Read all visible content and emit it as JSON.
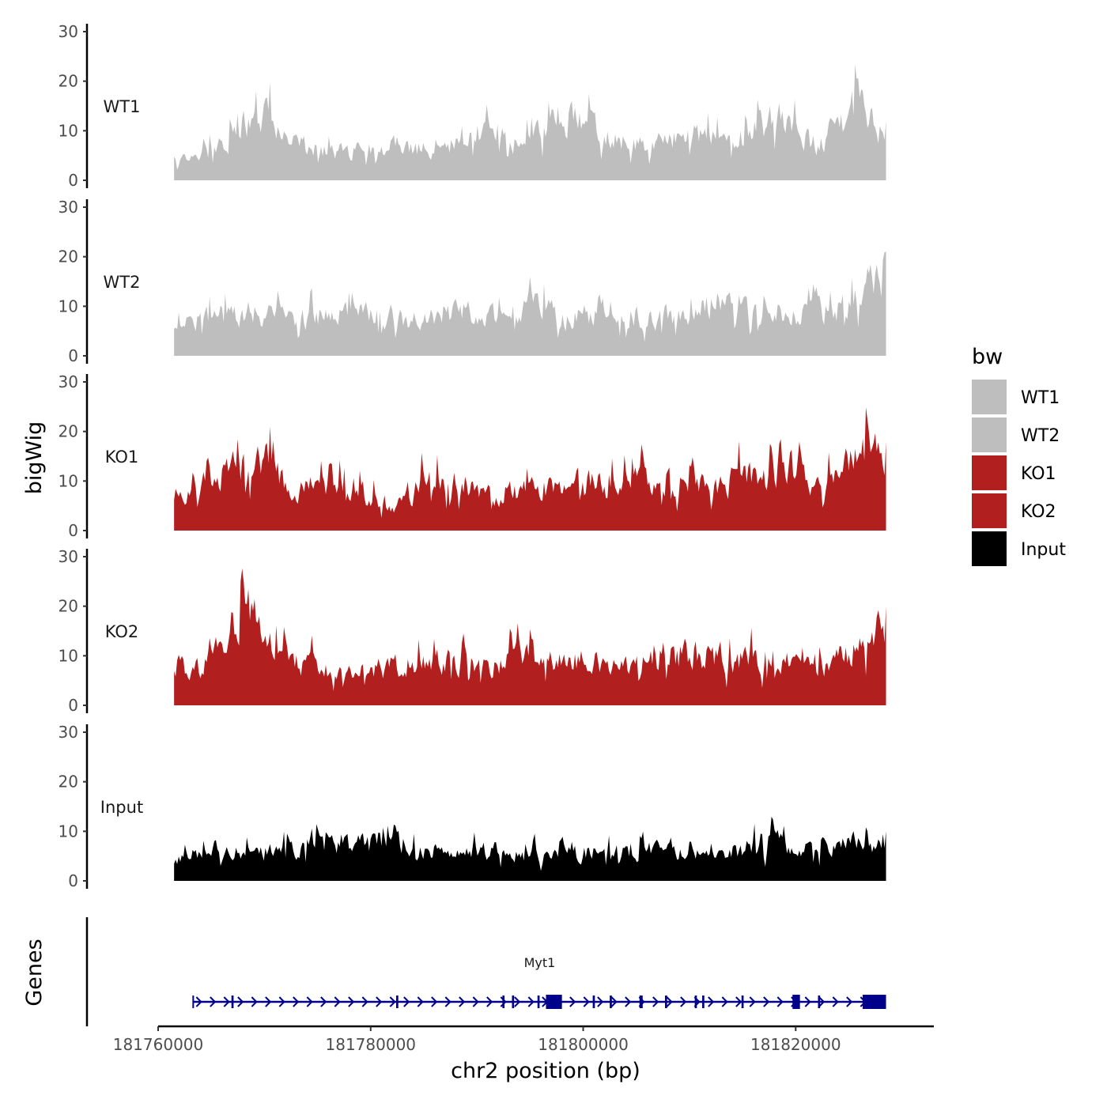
{
  "chart_data": {
    "type": "area",
    "chromosome": "chr2",
    "xlabel": "chr2 position (bp)",
    "ylabel": "bigWig",
    "genes_label": "Genes",
    "xlim": [
      181760000,
      181833000
    ],
    "data_range": [
      181761500,
      181828500
    ],
    "x_ticks": [
      181760000,
      181780000,
      181800000,
      181820000
    ],
    "x_tick_labels": [
      "181760000",
      "181780000",
      "181800000",
      "181820000"
    ],
    "ylim": [
      0,
      30
    ],
    "y_ticks": [
      0,
      10,
      20,
      30
    ],
    "y_tick_labels": [
      "0",
      "10",
      "20",
      "30"
    ],
    "legend": {
      "title": "bw",
      "entries": [
        {
          "label": "WT1",
          "color": "#bebebe"
        },
        {
          "label": "WT2",
          "color": "#bebebe"
        },
        {
          "label": "KO1",
          "color": "#b21f1f"
        },
        {
          "label": "KO2",
          "color": "#b21f1f"
        },
        {
          "label": "Input",
          "color": "#000000"
        }
      ]
    },
    "series": [
      {
        "name": "WT1",
        "color": "#bebebe",
        "anchors": [
          {
            "x": 181761500,
            "y": 5
          },
          {
            "x": 181763500,
            "y": 6
          },
          {
            "x": 181765500,
            "y": 8
          },
          {
            "x": 181768500,
            "y": 14
          },
          {
            "x": 181770000,
            "y": 16
          },
          {
            "x": 181772500,
            "y": 9
          },
          {
            "x": 181775000,
            "y": 8
          },
          {
            "x": 181778000,
            "y": 7
          },
          {
            "x": 181782000,
            "y": 9
          },
          {
            "x": 181786000,
            "y": 8
          },
          {
            "x": 181789500,
            "y": 10
          },
          {
            "x": 181791000,
            "y": 15
          },
          {
            "x": 181794000,
            "y": 8
          },
          {
            "x": 181797500,
            "y": 16
          },
          {
            "x": 181802000,
            "y": 12
          },
          {
            "x": 181806000,
            "y": 8
          },
          {
            "x": 181810000,
            "y": 12
          },
          {
            "x": 181813500,
            "y": 9
          },
          {
            "x": 181818500,
            "y": 15
          },
          {
            "x": 181822000,
            "y": 8
          },
          {
            "x": 181825500,
            "y": 19
          },
          {
            "x": 181828500,
            "y": 12
          }
        ],
        "base": 7,
        "amp": 5
      },
      {
        "name": "WT2",
        "color": "#bebebe",
        "anchors": [
          {
            "x": 181761500,
            "y": 6
          },
          {
            "x": 181764000,
            "y": 10
          },
          {
            "x": 181768000,
            "y": 11
          },
          {
            "x": 181772000,
            "y": 9
          },
          {
            "x": 181776000,
            "y": 10
          },
          {
            "x": 181780000,
            "y": 11
          },
          {
            "x": 181784000,
            "y": 9
          },
          {
            "x": 181788000,
            "y": 11
          },
          {
            "x": 181792000,
            "y": 10
          },
          {
            "x": 181795000,
            "y": 14
          },
          {
            "x": 181798000,
            "y": 9
          },
          {
            "x": 181802000,
            "y": 12
          },
          {
            "x": 181806000,
            "y": 9
          },
          {
            "x": 181810000,
            "y": 11
          },
          {
            "x": 181813500,
            "y": 15
          },
          {
            "x": 181817000,
            "y": 9
          },
          {
            "x": 181820000,
            "y": 10
          },
          {
            "x": 181824000,
            "y": 12
          },
          {
            "x": 181826500,
            "y": 17
          },
          {
            "x": 181828500,
            "y": 21
          }
        ],
        "base": 7,
        "amp": 5
      },
      {
        "name": "KO1",
        "color": "#b21f1f",
        "anchors": [
          {
            "x": 181761500,
            "y": 6
          },
          {
            "x": 181764000,
            "y": 15
          },
          {
            "x": 181767000,
            "y": 15
          },
          {
            "x": 181770000,
            "y": 17
          },
          {
            "x": 181773000,
            "y": 10
          },
          {
            "x": 181776000,
            "y": 12
          },
          {
            "x": 181779000,
            "y": 10
          },
          {
            "x": 181782000,
            "y": 5
          },
          {
            "x": 181785000,
            "y": 12
          },
          {
            "x": 181788000,
            "y": 13
          },
          {
            "x": 181791000,
            "y": 9
          },
          {
            "x": 181795000,
            "y": 10
          },
          {
            "x": 181799000,
            "y": 12
          },
          {
            "x": 181803000,
            "y": 11
          },
          {
            "x": 181807000,
            "y": 14
          },
          {
            "x": 181811000,
            "y": 11
          },
          {
            "x": 181815000,
            "y": 13
          },
          {
            "x": 181819000,
            "y": 15
          },
          {
            "x": 181823000,
            "y": 12
          },
          {
            "x": 181826000,
            "y": 20
          },
          {
            "x": 181828500,
            "y": 18
          }
        ],
        "base": 8,
        "amp": 6
      },
      {
        "name": "KO2",
        "color": "#b21f1f",
        "anchors": [
          {
            "x": 181761500,
            "y": 8
          },
          {
            "x": 181764000,
            "y": 9
          },
          {
            "x": 181766000,
            "y": 15
          },
          {
            "x": 181767500,
            "y": 24
          },
          {
            "x": 181769000,
            "y": 22
          },
          {
            "x": 181771000,
            "y": 14
          },
          {
            "x": 181774000,
            "y": 10
          },
          {
            "x": 181778000,
            "y": 8
          },
          {
            "x": 181782000,
            "y": 10
          },
          {
            "x": 181786000,
            "y": 12
          },
          {
            "x": 181790000,
            "y": 9
          },
          {
            "x": 181794000,
            "y": 12
          },
          {
            "x": 181798000,
            "y": 11
          },
          {
            "x": 181802000,
            "y": 10
          },
          {
            "x": 181806000,
            "y": 11
          },
          {
            "x": 181810000,
            "y": 13
          },
          {
            "x": 181814000,
            "y": 11
          },
          {
            "x": 181818000,
            "y": 12
          },
          {
            "x": 181822000,
            "y": 9
          },
          {
            "x": 181826000,
            "y": 14
          },
          {
            "x": 181828500,
            "y": 20
          }
        ],
        "base": 6,
        "amp": 6
      },
      {
        "name": "Input",
        "color": "#000000",
        "anchors": [
          {
            "x": 181761500,
            "y": 5
          },
          {
            "x": 181765000,
            "y": 8
          },
          {
            "x": 181769000,
            "y": 7
          },
          {
            "x": 181773000,
            "y": 8
          },
          {
            "x": 181777000,
            "y": 10
          },
          {
            "x": 181780000,
            "y": 9
          },
          {
            "x": 181781500,
            "y": 13
          },
          {
            "x": 181784000,
            "y": 7
          },
          {
            "x": 181788000,
            "y": 8
          },
          {
            "x": 181792000,
            "y": 7
          },
          {
            "x": 181796000,
            "y": 6
          },
          {
            "x": 181800000,
            "y": 7
          },
          {
            "x": 181804000,
            "y": 7
          },
          {
            "x": 181808000,
            "y": 8
          },
          {
            "x": 181812000,
            "y": 6
          },
          {
            "x": 181815000,
            "y": 8
          },
          {
            "x": 181817500,
            "y": 11
          },
          {
            "x": 181820000,
            "y": 7
          },
          {
            "x": 181824000,
            "y": 9
          },
          {
            "x": 181828500,
            "y": 10
          }
        ],
        "base": 4,
        "amp": 4
      }
    ],
    "gene": {
      "name": "Myt1",
      "color": "#00008b",
      "strand": "+",
      "start": 181763300,
      "end": 181828500,
      "exons": [
        [
          181766900,
          181767100
        ],
        [
          181782400,
          181782600
        ],
        [
          181792400,
          181792600
        ],
        [
          181793300,
          181793500
        ],
        [
          181795700,
          181795900
        ],
        [
          181796500,
          181798000
        ],
        [
          181800900,
          181801100
        ],
        [
          181802500,
          181802700
        ],
        [
          181805300,
          181805600
        ],
        [
          181807700,
          181807900
        ],
        [
          181810500,
          181810700
        ],
        [
          181811200,
          181811400
        ],
        [
          181814900,
          181815100
        ],
        [
          181819700,
          181820400
        ],
        [
          181822100,
          181822300
        ],
        [
          181826300,
          181828500
        ]
      ]
    }
  }
}
